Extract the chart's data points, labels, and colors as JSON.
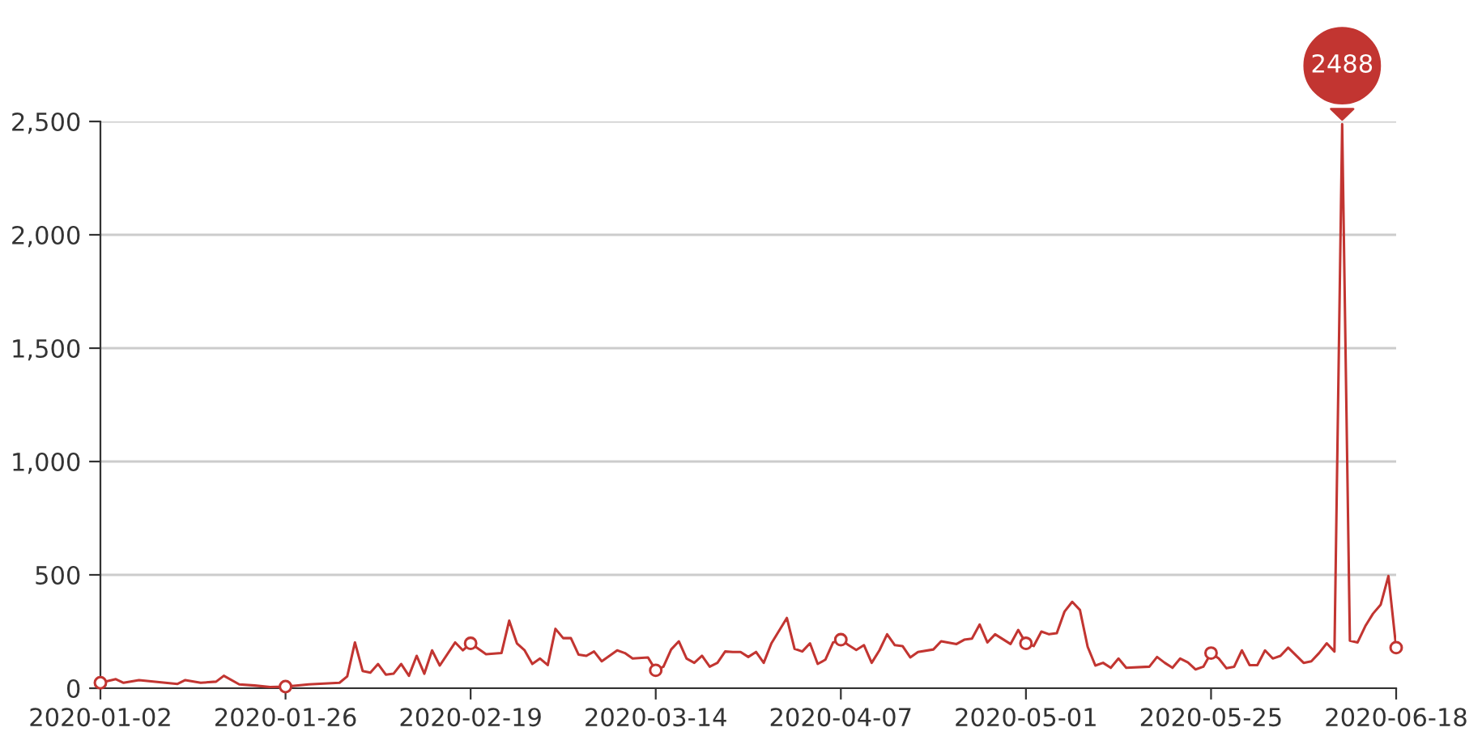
{
  "chart_data": {
    "type": "line",
    "x": [
      "2020-01-02",
      "2020-01-04",
      "2020-01-05",
      "2020-01-07",
      "2020-01-12",
      "2020-01-13",
      "2020-01-15",
      "2020-01-17",
      "2020-01-18",
      "2020-01-20",
      "2020-01-22",
      "2020-01-24",
      "2020-01-26",
      "2020-01-29",
      "2020-02-02",
      "2020-02-03",
      "2020-02-04",
      "2020-02-05",
      "2020-02-06",
      "2020-02-07",
      "2020-02-08",
      "2020-02-09",
      "2020-02-10",
      "2020-02-11",
      "2020-02-12",
      "2020-02-13",
      "2020-02-14",
      "2020-02-15",
      "2020-02-17",
      "2020-02-18",
      "2020-02-19",
      "2020-02-21",
      "2020-02-23",
      "2020-02-24",
      "2020-02-25",
      "2020-02-26",
      "2020-02-27",
      "2020-02-28",
      "2020-02-29",
      "2020-03-01",
      "2020-03-02",
      "2020-03-03",
      "2020-03-04",
      "2020-03-05",
      "2020-03-06",
      "2020-03-07",
      "2020-03-09",
      "2020-03-10",
      "2020-03-11",
      "2020-03-13",
      "2020-03-14",
      "2020-03-15",
      "2020-03-16",
      "2020-03-17",
      "2020-03-18",
      "2020-03-19",
      "2020-03-20",
      "2020-03-21",
      "2020-03-22",
      "2020-03-23",
      "2020-03-24",
      "2020-03-25",
      "2020-03-26",
      "2020-03-27",
      "2020-03-28",
      "2020-03-29",
      "2020-03-31",
      "2020-04-01",
      "2020-04-02",
      "2020-04-03",
      "2020-04-04",
      "2020-04-05",
      "2020-04-06",
      "2020-04-07",
      "2020-04-08",
      "2020-04-09",
      "2020-04-10",
      "2020-04-11",
      "2020-04-12",
      "2020-04-13",
      "2020-04-14",
      "2020-04-15",
      "2020-04-16",
      "2020-04-17",
      "2020-04-19",
      "2020-04-20",
      "2020-04-22",
      "2020-04-23",
      "2020-04-24",
      "2020-04-25",
      "2020-04-26",
      "2020-04-27",
      "2020-04-29",
      "2020-04-30",
      "2020-05-01",
      "2020-05-02",
      "2020-05-03",
      "2020-05-04",
      "2020-05-05",
      "2020-05-06",
      "2020-05-07",
      "2020-05-08",
      "2020-05-09",
      "2020-05-10",
      "2020-05-11",
      "2020-05-12",
      "2020-05-13",
      "2020-05-14",
      "2020-05-17",
      "2020-05-18",
      "2020-05-19",
      "2020-05-20",
      "2020-05-21",
      "2020-05-22",
      "2020-05-23",
      "2020-05-24",
      "2020-05-25",
      "2020-05-26",
      "2020-05-27",
      "2020-05-28",
      "2020-05-29",
      "2020-05-30",
      "2020-05-31",
      "2020-06-01",
      "2020-06-02",
      "2020-06-03",
      "2020-06-04",
      "2020-06-06",
      "2020-06-07",
      "2020-06-08",
      "2020-06-09",
      "2020-06-10",
      "2020-06-11",
      "2020-06-12",
      "2020-06-13",
      "2020-06-14",
      "2020-06-15",
      "2020-06-16",
      "2020-06-17",
      "2020-06-18"
    ],
    "series": [
      {
        "color": "#c23531",
        "values": [
          24,
          40,
          24,
          36,
          19,
          36,
          24,
          29,
          55,
          17,
          12,
          5,
          7,
          17,
          24,
          52,
          202,
          76,
          69,
          107,
          60,
          64,
          107,
          55,
          143,
          64,
          167,
          100,
          202,
          167,
          198,
          150,
          155,
          298,
          198,
          167,
          107,
          131,
          102,
          262,
          221,
          221,
          148,
          143,
          162,
          119,
          167,
          155,
          131,
          136,
          79,
          95,
          171,
          207,
          131,
          112,
          143,
          95,
          112,
          162,
          160,
          160,
          138,
          160,
          112,
          198,
          310,
          174,
          162,
          198,
          107,
          126,
          202,
          214,
          190,
          169,
          190,
          112,
          167,
          238,
          190,
          186,
          136,
          160,
          171,
          207,
          195,
          214,
          219,
          281,
          202,
          238,
          195,
          257,
          198,
          186,
          250,
          238,
          243,
          338,
          381,
          345,
          183,
          100,
          112,
          90,
          131,
          90,
          95,
          138,
          112,
          90,
          131,
          114,
          83,
          95,
          155,
          131,
          88,
          95,
          167,
          102,
          102,
          167,
          131,
          143,
          179,
          112,
          119,
          155,
          198,
          162,
          2488,
          210,
          202,
          274,
          329,
          369,
          495,
          179
        ]
      },
      {
        "type": "scatter",
        "color": "#c23531",
        "x": [
          "2020-01-02",
          "2020-01-26",
          "2020-02-19",
          "2020-03-14",
          "2020-04-07",
          "2020-05-01",
          "2020-05-25",
          "2020-06-18"
        ],
        "values": [
          24,
          7,
          198,
          79,
          214,
          198,
          155,
          179
        ]
      }
    ],
    "xlim": [
      "2020-01-02",
      "2020-06-18"
    ],
    "xticks": [
      {
        "value": "2020-01-02",
        "label": "2020-01-02"
      },
      {
        "value": "2020-01-26",
        "label": "2020-01-26"
      },
      {
        "value": "2020-02-19",
        "label": "2020-02-19"
      },
      {
        "value": "2020-03-14",
        "label": "2020-03-14"
      },
      {
        "value": "2020-04-07",
        "label": "2020-04-07"
      },
      {
        "value": "2020-05-01",
        "label": "2020-05-01"
      },
      {
        "value": "2020-05-25",
        "label": "2020-05-25"
      },
      {
        "value": "2020-06-18",
        "label": "2020-06-18"
      }
    ],
    "ylim": [
      0,
      2500
    ],
    "yticks": [
      0,
      {
        "value": 500,
        "label": "500"
      },
      {
        "value": 1000,
        "label": "1,000"
      },
      {
        "value": 1500,
        "label": "1,500"
      },
      {
        "value": 2000,
        "label": "2,000"
      },
      {
        "value": 2500,
        "label": "2,500"
      }
    ],
    "grid": "y",
    "line_style": "solid",
    "annotations": [
      {
        "text": "2488",
        "x": "2020-06-11",
        "y": 2488
      }
    ]
  }
}
